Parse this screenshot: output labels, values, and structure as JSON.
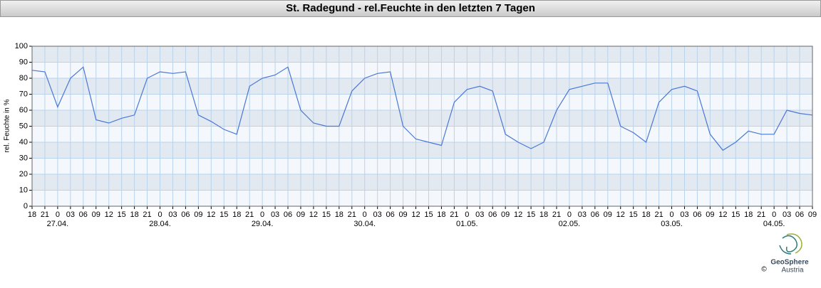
{
  "chart_data": {
    "type": "line",
    "title": "St. Radegund - rel.Feuchte in den letzten 7 Tagen",
    "ylabel": "rel. Feuchte in %",
    "x": [
      0,
      3,
      6,
      9,
      12,
      15,
      18,
      21,
      24,
      27,
      30,
      33,
      36,
      39,
      42,
      45,
      48,
      51,
      54,
      57,
      60,
      63,
      66,
      69,
      72,
      75,
      78,
      81,
      84,
      87,
      90,
      93,
      96,
      99,
      102,
      105,
      108,
      111,
      114,
      117,
      120,
      123,
      126,
      129,
      132,
      135,
      138,
      141,
      144,
      147,
      150,
      153,
      156,
      159,
      162,
      165,
      168,
      171,
      174,
      177,
      180,
      183
    ],
    "series": [
      {
        "name": "rel. Feuchte",
        "color": "#4a78d6",
        "values": [
          85,
          84,
          62,
          80,
          87,
          54,
          52,
          55,
          57,
          80,
          84,
          83,
          84,
          57,
          53,
          48,
          45,
          75,
          80,
          82,
          87,
          60,
          52,
          50,
          50,
          72,
          80,
          83,
          84,
          50,
          42,
          40,
          38,
          65,
          73,
          75,
          72,
          45,
          40,
          36,
          40,
          60,
          73,
          75,
          77,
          77,
          50,
          46,
          40,
          65,
          73,
          75,
          72,
          45,
          35,
          40,
          47,
          45,
          45,
          60,
          58,
          57
        ]
      }
    ],
    "xlim": [
      0,
      183
    ],
    "xticks": [
      {
        "value": 0,
        "label": "18"
      },
      {
        "value": 3,
        "label": "21"
      },
      {
        "value": 6,
        "label": "0"
      },
      {
        "value": 9,
        "label": "03"
      },
      {
        "value": 12,
        "label": "06"
      },
      {
        "value": 15,
        "label": "09"
      },
      {
        "value": 18,
        "label": "12"
      },
      {
        "value": 21,
        "label": "15"
      },
      {
        "value": 24,
        "label": "18"
      },
      {
        "value": 27,
        "label": "21"
      },
      {
        "value": 30,
        "label": "0"
      },
      {
        "value": 33,
        "label": "03"
      },
      {
        "value": 36,
        "label": "06"
      },
      {
        "value": 39,
        "label": "09"
      },
      {
        "value": 42,
        "label": "12"
      },
      {
        "value": 45,
        "label": "15"
      },
      {
        "value": 48,
        "label": "18"
      },
      {
        "value": 51,
        "label": "21"
      },
      {
        "value": 54,
        "label": "0"
      },
      {
        "value": 57,
        "label": "03"
      },
      {
        "value": 60,
        "label": "06"
      },
      {
        "value": 63,
        "label": "09"
      },
      {
        "value": 66,
        "label": "12"
      },
      {
        "value": 69,
        "label": "15"
      },
      {
        "value": 72,
        "label": "18"
      },
      {
        "value": 75,
        "label": "21"
      },
      {
        "value": 78,
        "label": "0"
      },
      {
        "value": 81,
        "label": "03"
      },
      {
        "value": 84,
        "label": "06"
      },
      {
        "value": 87,
        "label": "09"
      },
      {
        "value": 90,
        "label": "12"
      },
      {
        "value": 93,
        "label": "15"
      },
      {
        "value": 96,
        "label": "18"
      },
      {
        "value": 99,
        "label": "21"
      },
      {
        "value": 102,
        "label": "0"
      },
      {
        "value": 105,
        "label": "03"
      },
      {
        "value": 108,
        "label": "06"
      },
      {
        "value": 111,
        "label": "09"
      },
      {
        "value": 114,
        "label": "12"
      },
      {
        "value": 117,
        "label": "15"
      },
      {
        "value": 120,
        "label": "18"
      },
      {
        "value": 123,
        "label": "21"
      },
      {
        "value": 126,
        "label": "0"
      },
      {
        "value": 129,
        "label": "03"
      },
      {
        "value": 132,
        "label": "06"
      },
      {
        "value": 135,
        "label": "09"
      },
      {
        "value": 138,
        "label": "12"
      },
      {
        "value": 141,
        "label": "15"
      },
      {
        "value": 144,
        "label": "18"
      },
      {
        "value": 147,
        "label": "21"
      },
      {
        "value": 150,
        "label": "0"
      },
      {
        "value": 153,
        "label": "03"
      },
      {
        "value": 156,
        "label": "06"
      },
      {
        "value": 159,
        "label": "09"
      },
      {
        "value": 162,
        "label": "12"
      },
      {
        "value": 165,
        "label": "15"
      },
      {
        "value": 168,
        "label": "18"
      },
      {
        "value": 171,
        "label": "21"
      },
      {
        "value": 174,
        "label": "0"
      },
      {
        "value": 177,
        "label": "03"
      },
      {
        "value": 180,
        "label": "06"
      },
      {
        "value": 183,
        "label": "09"
      }
    ],
    "date_labels": [
      {
        "value": 6,
        "label": "27.04."
      },
      {
        "value": 30,
        "label": "28.04."
      },
      {
        "value": 54,
        "label": "29.04."
      },
      {
        "value": 78,
        "label": "30.04."
      },
      {
        "value": 102,
        "label": "01.05."
      },
      {
        "value": 126,
        "label": "02.05."
      },
      {
        "value": 150,
        "label": "03.05."
      },
      {
        "value": 174,
        "label": "04.05."
      }
    ],
    "ylim": [
      0,
      100
    ],
    "yticks": [
      0,
      10,
      20,
      30,
      40,
      50,
      60,
      70,
      80,
      90,
      100
    ],
    "grid": true,
    "logo": {
      "name": "GeoSphere",
      "sub": "Austria",
      "copyright": "©"
    }
  }
}
